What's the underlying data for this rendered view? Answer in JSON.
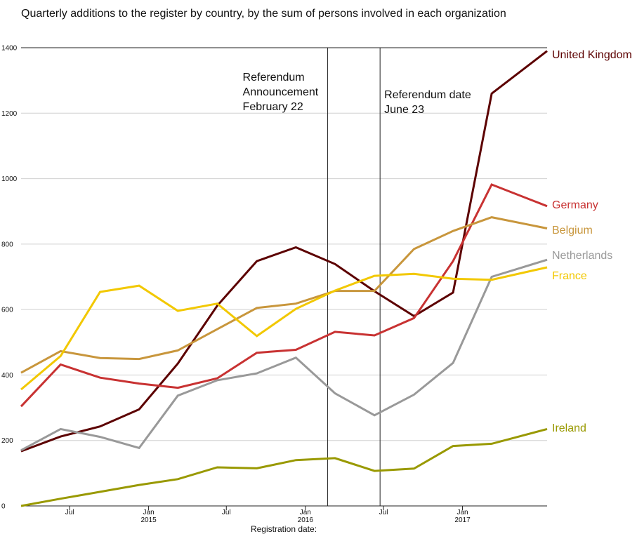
{
  "chart_data": {
    "type": "line",
    "subtitle": "Quarterly additions to the register by country, by the sum of persons involved in each organization",
    "xlabel": "Registration date:",
    "ylabel": "",
    "ylim": [
      0,
      1400
    ],
    "yticks": [
      0,
      200,
      400,
      600,
      800,
      1000,
      1200,
      1400
    ],
    "grid": true,
    "legend": "direct labels at line ends (right)",
    "x_domain": [
      "2014-03-10",
      "2017-07-17"
    ],
    "x_ticks": [
      {
        "date": "2014-07-01",
        "label": "Jul",
        "sublabel": ""
      },
      {
        "date": "2015-01-01",
        "label": "Jan",
        "sublabel": "2015"
      },
      {
        "date": "2015-07-01",
        "label": "Jul",
        "sublabel": ""
      },
      {
        "date": "2016-01-01",
        "label": "Jan",
        "sublabel": "2016"
      },
      {
        "date": "2016-07-01",
        "label": "Jul",
        "sublabel": ""
      },
      {
        "date": "2017-01-01",
        "label": "Jan",
        "sublabel": "2017"
      }
    ],
    "x": [
      "2014-03-10",
      "2014-06-10",
      "2014-09-10",
      "2014-12-10",
      "2015-03-10",
      "2015-06-10",
      "2015-09-10",
      "2015-12-10",
      "2016-03-10",
      "2016-06-10",
      "2016-09-10",
      "2016-12-10",
      "2017-03-10",
      "2017-07-17"
    ],
    "series": [
      {
        "name": "United Kingdom",
        "color": "#5c0000",
        "values": [
          167,
          212,
          243,
          295,
          435,
          612,
          748,
          790,
          739,
          656,
          580,
          652,
          1260,
          1390
        ]
      },
      {
        "name": "Germany",
        "color": "#c83232",
        "values": [
          304,
          432,
          392,
          374,
          361,
          390,
          468,
          477,
          532,
          521,
          574,
          748,
          982,
          916
        ]
      },
      {
        "name": "Belgium",
        "color": "#c8963c",
        "values": [
          407,
          473,
          452,
          449,
          475,
          540,
          605,
          618,
          657,
          657,
          785,
          840,
          882,
          848
        ]
      },
      {
        "name": "Netherlands",
        "color": "#999999",
        "values": [
          170,
          235,
          211,
          177,
          337,
          384,
          405,
          453,
          344,
          277,
          340,
          437,
          700,
          752
        ]
      },
      {
        "name": "France",
        "color": "#f2c800",
        "values": [
          356,
          458,
          654,
          673,
          596,
          618,
          519,
          602,
          658,
          703,
          709,
          694,
          691,
          729
        ]
      },
      {
        "name": "Ireland",
        "color": "#999900",
        "values": [
          0,
          22,
          43,
          64,
          82,
          118,
          115,
          140,
          146,
          107,
          114,
          183,
          190,
          235
        ]
      }
    ],
    "annotations": [
      {
        "date": "2016-02-22",
        "lines": [
          "Referendum",
          "Announcement",
          "February 22"
        ]
      },
      {
        "date": "2016-06-23",
        "lines": [
          "Referendum date",
          "June 23"
        ]
      }
    ]
  }
}
